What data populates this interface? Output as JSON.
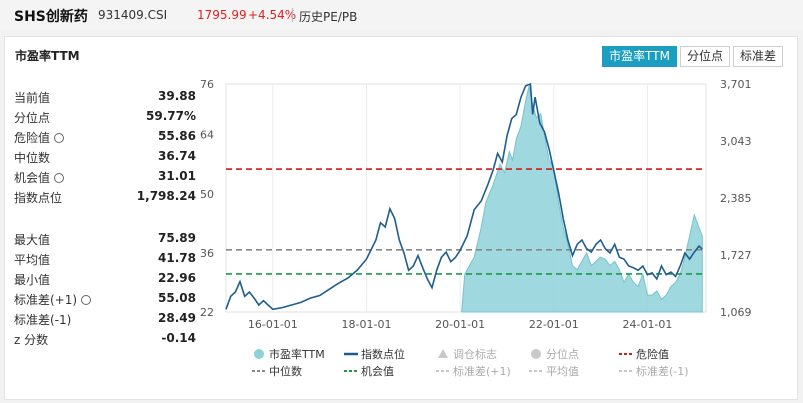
{
  "header": {
    "name": "SHS创新药",
    "code": "931409.CSI",
    "price": "1795.99",
    "change": "+4.54%",
    "view": "历史PE/PB"
  },
  "card": {
    "title": "市盈率TTM"
  },
  "tabs": [
    {
      "label": "市盈率TTM",
      "active": true
    },
    {
      "label": "分位点",
      "active": false
    },
    {
      "label": "标准差",
      "active": false
    }
  ],
  "stats": [
    {
      "label": "当前值",
      "value": "39.88",
      "icon": ""
    },
    {
      "label": "分位点",
      "value": "59.77%",
      "icon": ""
    },
    {
      "label": "危险值",
      "value": "55.86",
      "icon": "gear-icon"
    },
    {
      "label": "中位数",
      "value": "36.74",
      "icon": ""
    },
    {
      "label": "机会值",
      "value": "31.01",
      "icon": "gear-icon"
    },
    {
      "label": "指数点位",
      "value": "1,798.24",
      "icon": ""
    }
  ],
  "stats2": [
    {
      "label": "最大值",
      "value": "75.89",
      "icon": ""
    },
    {
      "label": "平均值",
      "value": "41.78",
      "icon": ""
    },
    {
      "label": "最小值",
      "value": "22.96",
      "icon": ""
    },
    {
      "label": "标准差(+1)",
      "value": "55.08",
      "icon": "gear-icon"
    },
    {
      "label": "标准差(-1)",
      "value": "28.49",
      "icon": ""
    },
    {
      "label": "z 分数",
      "value": "-0.14",
      "icon": ""
    }
  ],
  "chart_data": {
    "type": "area",
    "x_ticks": [
      "16-01-01",
      "18-01-01",
      "20-01-01",
      "22-01-01",
      "24-01-01"
    ],
    "x_tick_years": [
      2016,
      2018,
      2020,
      2022,
      2024
    ],
    "x_range": [
      2015.0,
      2025.25
    ],
    "y_left_ticks": [
      "76",
      "64",
      "50",
      "36",
      "22"
    ],
    "y_left_range": [
      22,
      76
    ],
    "y_right_ticks": [
      "3,701",
      "3,043",
      "2,385",
      "1,727",
      "1,069"
    ],
    "y_right_range": [
      1069,
      3701
    ],
    "series": [
      {
        "name": "市盈率TTM",
        "axis": "left",
        "color": "#8fd1d9",
        "points": [
          [
            2020.03,
            22
          ],
          [
            2020.1,
            31
          ],
          [
            2020.3,
            35
          ],
          [
            2020.45,
            42
          ],
          [
            2020.55,
            48
          ],
          [
            2020.7,
            52
          ],
          [
            2020.85,
            57
          ],
          [
            2020.95,
            55
          ],
          [
            2021.05,
            60
          ],
          [
            2021.12,
            58
          ],
          [
            2021.2,
            63
          ],
          [
            2021.3,
            66
          ],
          [
            2021.4,
            72
          ],
          [
            2021.47,
            75.5
          ],
          [
            2021.55,
            71
          ],
          [
            2021.63,
            68
          ],
          [
            2021.72,
            69
          ],
          [
            2021.8,
            64
          ],
          [
            2021.9,
            58
          ],
          [
            2022.0,
            56
          ],
          [
            2022.1,
            48
          ],
          [
            2022.2,
            42
          ],
          [
            2022.3,
            38
          ],
          [
            2022.4,
            33
          ],
          [
            2022.5,
            32
          ],
          [
            2022.6,
            34
          ],
          [
            2022.7,
            36
          ],
          [
            2022.8,
            33
          ],
          [
            2022.9,
            34
          ],
          [
            2023.0,
            35
          ],
          [
            2023.1,
            34.5
          ],
          [
            2023.2,
            33
          ],
          [
            2023.3,
            34
          ],
          [
            2023.4,
            32
          ],
          [
            2023.5,
            29
          ],
          [
            2023.6,
            31
          ],
          [
            2023.7,
            29
          ],
          [
            2023.8,
            28
          ],
          [
            2023.9,
            31
          ],
          [
            2024.0,
            26
          ],
          [
            2024.1,
            26
          ],
          [
            2024.2,
            27
          ],
          [
            2024.3,
            25
          ],
          [
            2024.4,
            26
          ],
          [
            2024.5,
            28
          ],
          [
            2024.6,
            29
          ],
          [
            2024.7,
            31
          ],
          [
            2024.8,
            35
          ],
          [
            2024.9,
            40
          ],
          [
            2025.0,
            45
          ],
          [
            2025.1,
            42
          ],
          [
            2025.17,
            40
          ]
        ]
      },
      {
        "name": "指数点位",
        "axis": "right",
        "color": "#1f5d8c",
        "points": [
          [
            2015.0,
            1100
          ],
          [
            2015.1,
            1250
          ],
          [
            2015.2,
            1300
          ],
          [
            2015.3,
            1420
          ],
          [
            2015.4,
            1250
          ],
          [
            2015.5,
            1300
          ],
          [
            2015.6,
            1230
          ],
          [
            2015.7,
            1150
          ],
          [
            2015.8,
            1200
          ],
          [
            2015.9,
            1150
          ],
          [
            2016.0,
            1100
          ],
          [
            2016.2,
            1120
          ],
          [
            2016.4,
            1150
          ],
          [
            2016.6,
            1180
          ],
          [
            2016.8,
            1230
          ],
          [
            2017.0,
            1260
          ],
          [
            2017.2,
            1330
          ],
          [
            2017.4,
            1400
          ],
          [
            2017.6,
            1460
          ],
          [
            2017.8,
            1550
          ],
          [
            2018.0,
            1680
          ],
          [
            2018.2,
            1900
          ],
          [
            2018.3,
            2100
          ],
          [
            2018.4,
            2050
          ],
          [
            2018.5,
            2260
          ],
          [
            2018.6,
            2150
          ],
          [
            2018.7,
            1900
          ],
          [
            2018.8,
            1750
          ],
          [
            2018.9,
            1550
          ],
          [
            2019.0,
            1600
          ],
          [
            2019.1,
            1720
          ],
          [
            2019.2,
            1580
          ],
          [
            2019.3,
            1450
          ],
          [
            2019.4,
            1350
          ],
          [
            2019.5,
            1550
          ],
          [
            2019.6,
            1700
          ],
          [
            2019.7,
            1760
          ],
          [
            2019.8,
            1650
          ],
          [
            2019.9,
            1700
          ],
          [
            2020.0,
            1780
          ],
          [
            2020.15,
            1950
          ],
          [
            2020.3,
            2250
          ],
          [
            2020.45,
            2350
          ],
          [
            2020.6,
            2550
          ],
          [
            2020.7,
            2700
          ],
          [
            2020.8,
            2900
          ],
          [
            2020.9,
            2800
          ],
          [
            2021.0,
            3100
          ],
          [
            2021.1,
            3300
          ],
          [
            2021.2,
            3350
          ],
          [
            2021.3,
            3550
          ],
          [
            2021.4,
            3680
          ],
          [
            2021.5,
            3700
          ],
          [
            2021.55,
            3350
          ],
          [
            2021.6,
            3550
          ],
          [
            2021.7,
            3250
          ],
          [
            2021.8,
            3150
          ],
          [
            2021.9,
            2950
          ],
          [
            2022.0,
            2700
          ],
          [
            2022.1,
            2450
          ],
          [
            2022.2,
            2150
          ],
          [
            2022.3,
            1900
          ],
          [
            2022.4,
            1720
          ],
          [
            2022.5,
            1850
          ],
          [
            2022.6,
            1900
          ],
          [
            2022.7,
            1800
          ],
          [
            2022.8,
            1760
          ],
          [
            2022.9,
            1850
          ],
          [
            2023.0,
            1900
          ],
          [
            2023.1,
            1800
          ],
          [
            2023.2,
            1750
          ],
          [
            2023.3,
            1850
          ],
          [
            2023.4,
            1700
          ],
          [
            2023.5,
            1680
          ],
          [
            2023.6,
            1600
          ],
          [
            2023.7,
            1580
          ],
          [
            2023.8,
            1550
          ],
          [
            2023.9,
            1600
          ],
          [
            2024.0,
            1500
          ],
          [
            2024.1,
            1520
          ],
          [
            2024.2,
            1450
          ],
          [
            2024.3,
            1600
          ],
          [
            2024.4,
            1500
          ],
          [
            2024.5,
            1530
          ],
          [
            2024.6,
            1480
          ],
          [
            2024.7,
            1600
          ],
          [
            2024.8,
            1750
          ],
          [
            2024.9,
            1680
          ],
          [
            2025.0,
            1760
          ],
          [
            2025.1,
            1830
          ],
          [
            2025.17,
            1795
          ]
        ]
      }
    ],
    "reference_lines": [
      {
        "name": "危险值",
        "value": 55.86,
        "color": "#cc1f1f"
      },
      {
        "name": "中位数",
        "value": 36.74,
        "color": "#888888"
      },
      {
        "name": "机会值",
        "value": 31.01,
        "color": "#1c9c4a"
      }
    ],
    "legend_row1": [
      {
        "label": "市盈率TTM",
        "marker": "circle",
        "color": "#8fd1d9"
      },
      {
        "label": "指数点位",
        "marker": "line",
        "color": "#1f5d8c"
      },
      {
        "label": "调仓标志",
        "marker": "triangle",
        "color": "#c8c8c8"
      },
      {
        "label": "分位点",
        "marker": "circle",
        "color": "#c8c8c8"
      },
      {
        "label": "危险值",
        "marker": "dash",
        "color": "#cc1f1f"
      }
    ],
    "legend_row2": [
      {
        "label": "中位数",
        "marker": "dash",
        "color": "#888888"
      },
      {
        "label": "机会值",
        "marker": "dash",
        "color": "#1c9c4a"
      },
      {
        "label": "标准差(+1)",
        "marker": "dash",
        "color": "#c8c8c8"
      },
      {
        "label": "平均值",
        "marker": "dash",
        "color": "#c8c8c8"
      },
      {
        "label": "标准差(-1)",
        "marker": "dash",
        "color": "#c8c8c8"
      }
    ],
    "grid": "vertical"
  }
}
